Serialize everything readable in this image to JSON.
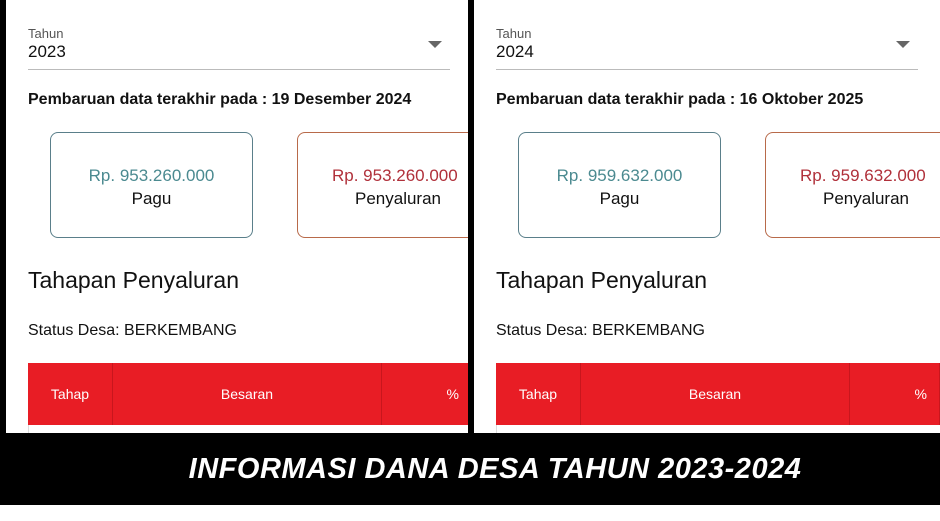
{
  "panels": [
    {
      "year_label": "Tahun",
      "year": "2023",
      "update_text": "Pembaruan data terakhir pada : 19 Desember 2024",
      "pagu_amount": "Rp. 953.260.000",
      "pagu_label": "Pagu",
      "penyaluran_amount": "Rp. 953.260.000",
      "penyaluran_label": "Penyaluran",
      "section_title": "Tahapan Penyaluran",
      "status": "Status Desa: BERKEMBANG",
      "columns": [
        "Tahap",
        "Besaran",
        "%"
      ]
    },
    {
      "year_label": "Tahun",
      "year": "2024",
      "update_text": "Pembaruan data terakhir pada : 16 Oktober 2025",
      "pagu_amount": "Rp. 959.632.000",
      "pagu_label": "Pagu",
      "penyaluran_amount": "Rp. 959.632.000",
      "penyaluran_label": "Penyaluran",
      "section_title": "Tahapan Penyaluran",
      "status": "Status Desa: BERKEMBANG",
      "columns": [
        "Tahap",
        "Besaran",
        "%"
      ]
    }
  ],
  "banner": "INFORMASI DANA DESA TAHUN 2023-2024",
  "colors": {
    "table_header": "#e81d25",
    "pagu": "#4b8a90",
    "penyaluran": "#b0303a"
  }
}
